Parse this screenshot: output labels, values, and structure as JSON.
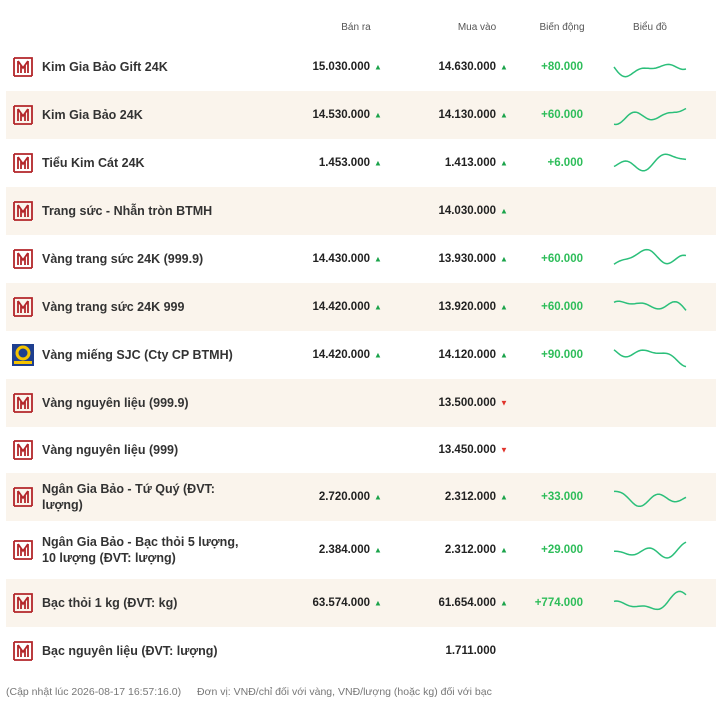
{
  "header": {
    "sell": "Bán ra",
    "buy": "Mua vào",
    "change": "Biến động",
    "chart": "Biểu đồ"
  },
  "rows": [
    {
      "name": "Kim Gia Bảo Gift 24K",
      "sell": "15.030.000",
      "sell_arrow": "▲",
      "buy": "14.630.000",
      "buy_arrow": "▲",
      "change": "+80.000"
    },
    {
      "name": "Kim Gia Bảo 24K",
      "sell": "14.530.000",
      "sell_arrow": "▲",
      "buy": "14.130.000",
      "buy_arrow": "▲",
      "change": "+60.000"
    },
    {
      "name": "Tiểu Kim Cát 24K",
      "sell": "1.453.000",
      "sell_arrow": "▲",
      "buy": "1.413.000",
      "buy_arrow": "▲",
      "change": "+6.000"
    },
    {
      "name": "Trang sức - Nhẫn tròn BTMH",
      "sell": null,
      "sell_arrow": null,
      "buy": "14.030.000",
      "buy_arrow": "▲",
      "change": null
    },
    {
      "name": "Vàng trang sức 24K (999.9)",
      "sell": "14.430.000",
      "sell_arrow": "▲",
      "buy": "13.930.000",
      "buy_arrow": "▲",
      "change": "+60.000"
    },
    {
      "name": "Vàng trang sức 24K 999",
      "sell": "14.420.000",
      "sell_arrow": "▲",
      "buy": "13.920.000",
      "buy_arrow": "▲",
      "change": "+60.000"
    },
    {
      "name": "Vàng miếng SJC (Cty CP BTMH)",
      "sell": "14.420.000",
      "sell_arrow": "▲",
      "buy": "14.120.000",
      "buy_arrow": "▲",
      "change": "+90.000"
    },
    {
      "name": "Vàng nguyên liệu (999.9)",
      "sell": null,
      "sell_arrow": null,
      "buy": "13.500.000",
      "buy_arrow": "▼",
      "change": null
    },
    {
      "name": "Vàng nguyên liệu (999)",
      "sell": null,
      "sell_arrow": null,
      "buy": "13.450.000",
      "buy_arrow": "▼",
      "change": null
    },
    {
      "name": "Ngân Gia Bảo - Tứ Quý (ĐVT: lượng)",
      "sell": "2.720.000",
      "sell_arrow": "▲",
      "buy": "2.312.000",
      "buy_arrow": "▲",
      "change": "+33.000"
    },
    {
      "name": "Ngân Gia Bảo - Bạc thỏi 5 lượng, 10 lượng (ĐVT: lượng)",
      "sell": "2.384.000",
      "sell_arrow": "▲",
      "buy": "2.312.000",
      "buy_arrow": "▲",
      "change": "+29.000"
    },
    {
      "name": "Bạc thỏi 1 kg (ĐVT: kg)",
      "sell": "63.574.000",
      "sell_arrow": "▲",
      "buy": "61.654.000",
      "buy_arrow": "▲",
      "change": "+774.000"
    },
    {
      "name": "Bạc nguyên liệu (ĐVT: lượng)",
      "sell": null,
      "sell_arrow": null,
      "buy": "1.711.000",
      "buy_arrow": null,
      "change": null
    }
  ],
  "footer": {
    "updated": "(Cập nhật lúc 2026-08-17 16:57:16.0)",
    "unit": "Đơn vị: VNĐ/chỉ đối với vàng, VNĐ/lượng (hoặc kg) đối với bạc"
  }
}
